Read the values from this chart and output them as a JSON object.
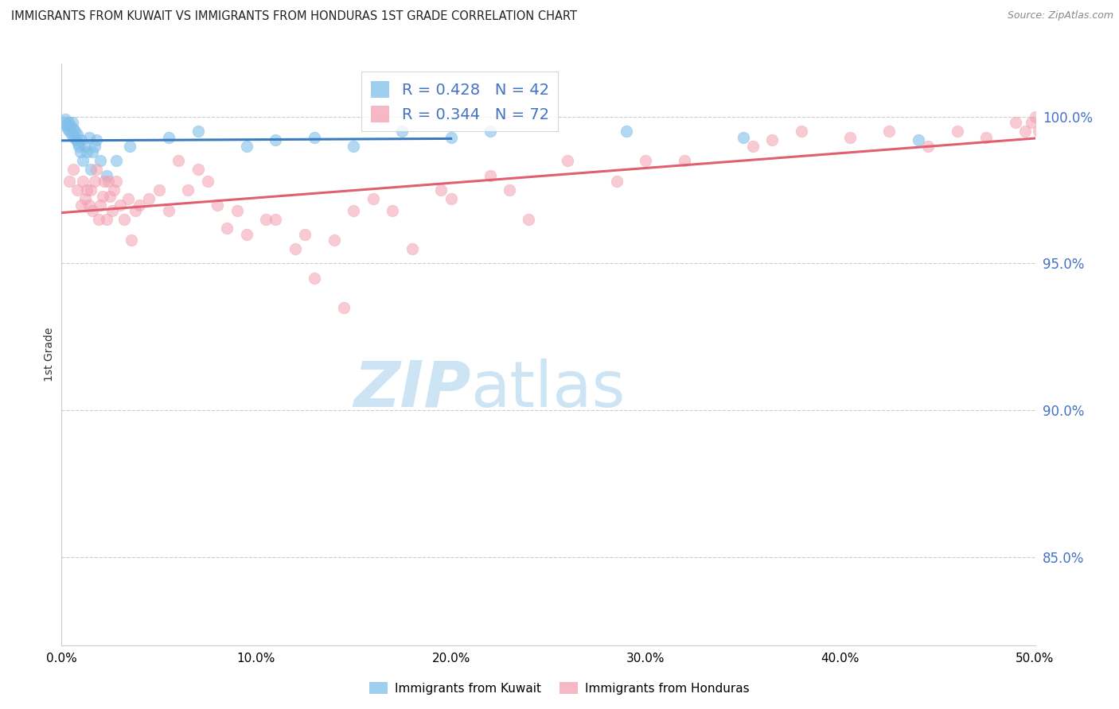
{
  "title": "IMMIGRANTS FROM KUWAIT VS IMMIGRANTS FROM HONDURAS 1ST GRADE CORRELATION CHART",
  "source": "Source: ZipAtlas.com",
  "ylabel": "1st Grade",
  "xlim": [
    0.0,
    50.0
  ],
  "ylim": [
    82.0,
    101.8
  ],
  "yticks": [
    85.0,
    90.0,
    95.0,
    100.0
  ],
  "ytick_labels": [
    "85.0%",
    "90.0%",
    "95.0%",
    "100.0%"
  ],
  "xticks": [
    0.0,
    10.0,
    20.0,
    30.0,
    40.0,
    50.0
  ],
  "xtick_labels": [
    "0.0%",
    "10.0%",
    "20.0%",
    "30.0%",
    "40.0%",
    "50.0%"
  ],
  "legend_r_kuwait": "R = 0.428",
  "legend_n_kuwait": "N = 42",
  "legend_r_honduras": "R = 0.344",
  "legend_n_honduras": "N = 72",
  "kuwait_color": "#7fbfea",
  "honduras_color": "#f4a0b0",
  "kuwait_line_color": "#3a7abf",
  "honduras_line_color": "#e06070",
  "watermark_zip": "ZIP",
  "watermark_atlas": "atlas",
  "watermark_color": "#cde4f5",
  "kuwait_x": [
    0.15,
    0.2,
    0.25,
    0.3,
    0.35,
    0.4,
    0.45,
    0.5,
    0.55,
    0.6,
    0.65,
    0.7,
    0.75,
    0.8,
    0.85,
    0.9,
    0.95,
    1.0,
    1.1,
    1.2,
    1.3,
    1.4,
    1.5,
    1.6,
    1.7,
    1.8,
    2.0,
    2.3,
    2.8,
    3.5,
    5.5,
    7.0,
    9.5,
    11.0,
    13.0,
    15.0,
    17.5,
    20.0,
    22.0,
    29.0,
    35.0,
    44.0
  ],
  "kuwait_y": [
    99.8,
    99.9,
    99.7,
    99.6,
    99.8,
    99.5,
    99.7,
    99.4,
    99.8,
    99.6,
    99.3,
    99.5,
    99.2,
    99.4,
    99.1,
    99.0,
    98.8,
    99.2,
    98.5,
    99.0,
    98.8,
    99.3,
    98.2,
    98.8,
    99.0,
    99.2,
    98.5,
    98.0,
    98.5,
    99.0,
    99.3,
    99.5,
    99.0,
    99.2,
    99.3,
    99.0,
    99.5,
    99.3,
    99.5,
    99.5,
    99.3,
    99.2
  ],
  "honduras_x": [
    0.4,
    0.6,
    0.8,
    1.0,
    1.1,
    1.2,
    1.3,
    1.4,
    1.5,
    1.6,
    1.7,
    1.8,
    1.9,
    2.0,
    2.1,
    2.2,
    2.3,
    2.4,
    2.5,
    2.6,
    2.7,
    2.8,
    3.0,
    3.2,
    3.4,
    3.6,
    3.8,
    4.0,
    4.5,
    5.0,
    5.5,
    6.0,
    6.5,
    7.0,
    7.5,
    8.0,
    8.5,
    9.0,
    9.5,
    10.5,
    11.0,
    12.0,
    12.5,
    13.0,
    14.0,
    14.5,
    15.0,
    16.0,
    17.0,
    18.0,
    19.5,
    20.0,
    22.0,
    23.0,
    24.0,
    26.0,
    28.5,
    30.0,
    32.0,
    35.5,
    36.5,
    38.0,
    40.5,
    42.5,
    44.5,
    46.0,
    47.5,
    49.0,
    49.5,
    49.8,
    50.0,
    50.2
  ],
  "honduras_y": [
    97.8,
    98.2,
    97.5,
    97.0,
    97.8,
    97.2,
    97.5,
    97.0,
    97.5,
    96.8,
    97.8,
    98.2,
    96.5,
    97.0,
    97.3,
    97.8,
    96.5,
    97.8,
    97.3,
    96.8,
    97.5,
    97.8,
    97.0,
    96.5,
    97.2,
    95.8,
    96.8,
    97.0,
    97.2,
    97.5,
    96.8,
    98.5,
    97.5,
    98.2,
    97.8,
    97.0,
    96.2,
    96.8,
    96.0,
    96.5,
    96.5,
    95.5,
    96.0,
    94.5,
    95.8,
    93.5,
    96.8,
    97.2,
    96.8,
    95.5,
    97.5,
    97.2,
    98.0,
    97.5,
    96.5,
    98.5,
    97.8,
    98.5,
    98.5,
    99.0,
    99.2,
    99.5,
    99.3,
    99.5,
    99.0,
    99.5,
    99.3,
    99.8,
    99.5,
    99.8,
    100.0,
    99.5
  ]
}
